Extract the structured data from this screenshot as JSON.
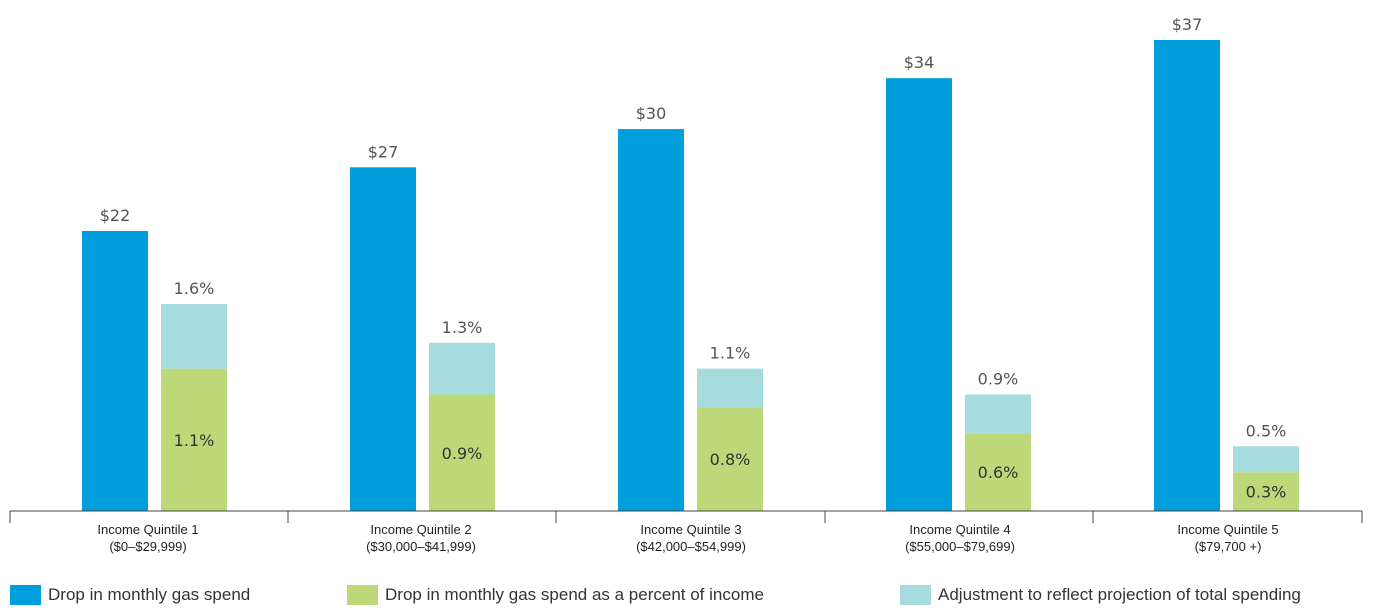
{
  "chart_data": {
    "type": "bar",
    "categories": [
      {
        "name": "Income Quintile 1",
        "range": "($0–$29,999)"
      },
      {
        "name": "Income Quintile 2",
        "range": "($30,000–$41,999)"
      },
      {
        "name": "Income Quintile 3",
        "range": "($42,000–$54,999)"
      },
      {
        "name": "Income Quintile 4",
        "range": "($55,000–$79,699)"
      },
      {
        "name": "Income Quintile 5",
        "range": "($79,700 +)"
      }
    ],
    "series": [
      {
        "name": "Drop in monthly gas spend",
        "values": [
          22,
          27,
          30,
          34,
          37
        ],
        "labels": [
          "$22",
          "$27",
          "$30",
          "$34",
          "$37"
        ],
        "color": "#009fdb"
      },
      {
        "name": "Drop in monthly gas spend as a percent of income",
        "values": [
          1.1,
          0.9,
          0.8,
          0.6,
          0.3
        ],
        "labels": [
          "1.1%",
          "0.9%",
          "0.8%",
          "0.6%",
          "0.3%"
        ],
        "color": "#bcd878",
        "stack": "pct"
      },
      {
        "name": "Adjustment to reflect projection of total spending",
        "values": [
          0.5,
          0.4,
          0.3,
          0.3,
          0.2
        ],
        "total_labels": [
          "1.6%",
          "1.3%",
          "1.1%",
          "0.9%",
          "0.5%"
        ],
        "color": "#a6dcde",
        "stack": "pct"
      }
    ],
    "dollar_axis_max": 37,
    "percent_axis_max": 1.6,
    "grid": false,
    "legend_position": "bottom"
  }
}
